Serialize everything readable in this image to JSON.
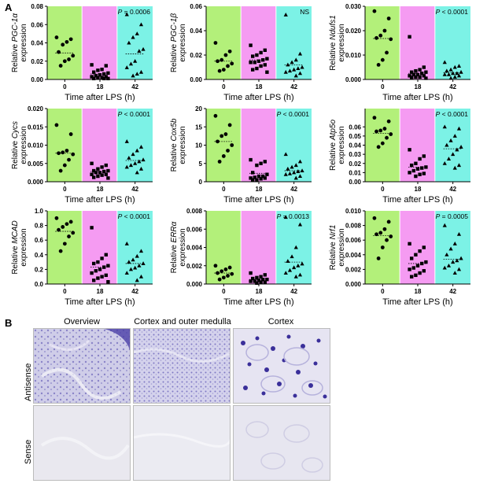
{
  "panel_a_label": "A",
  "panel_b_label": "B",
  "xlabel": "Time after LPS (h)",
  "categories": [
    "0",
    "18",
    "42"
  ],
  "group_colors": [
    "#b3f07a",
    "#f59bf2",
    "#7cf2e6"
  ],
  "chart_data": [
    {
      "type": "scatter",
      "gene": "PGC-1α",
      "ylabel_prefix": "Relative",
      "ylabel_suffix": "expression",
      "ylim": [
        0,
        0.08
      ],
      "yticks": [
        "0.00",
        "0.02",
        "0.04",
        "0.06",
        "0.08"
      ],
      "pvalue": "P = 0.0006",
      "categories": [
        "0",
        "18",
        "42"
      ],
      "groups": [
        {
          "marker": "circle",
          "mean": 0.029,
          "values": [
            0.046,
            0.044,
            0.041,
            0.038,
            0.03,
            0.026,
            0.022,
            0.02,
            0.015
          ]
        },
        {
          "marker": "square",
          "mean": 0.006,
          "values": [
            0.016,
            0.015,
            0.011,
            0.01,
            0.008,
            0.007,
            0.006,
            0.005,
            0.004,
            0.003,
            0.003,
            0.002,
            0.002,
            0.001,
            0.001,
            0.001
          ]
        },
        {
          "marker": "triangle",
          "mean": 0.028,
          "values": [
            0.071,
            0.06,
            0.05,
            0.046,
            0.04,
            0.033,
            0.031,
            0.02,
            0.017,
            0.013,
            0.008,
            0.006,
            0.004
          ]
        }
      ]
    },
    {
      "type": "scatter",
      "gene": "PGC-1β",
      "ylabel_prefix": "Relative",
      "ylabel_suffix": "expression",
      "ylim": [
        0,
        0.06
      ],
      "yticks": [
        "0.00",
        "0.02",
        "0.04",
        "0.06"
      ],
      "pvalue": "NS",
      "categories": [
        "0",
        "18",
        "42"
      ],
      "groups": [
        {
          "marker": "circle",
          "mean": 0.015,
          "values": [
            0.03,
            0.023,
            0.02,
            0.016,
            0.015,
            0.013,
            0.011,
            0.008,
            0.007
          ]
        },
        {
          "marker": "square",
          "mean": 0.016,
          "values": [
            0.028,
            0.024,
            0.022,
            0.02,
            0.019,
            0.017,
            0.016,
            0.015,
            0.014,
            0.014,
            0.012,
            0.011,
            0.009,
            0.008,
            0.006
          ]
        },
        {
          "marker": "triangle",
          "mean": 0.012,
          "values": [
            0.053,
            0.021,
            0.016,
            0.014,
            0.012,
            0.01,
            0.009,
            0.008,
            0.007,
            0.006,
            0.005,
            0.003
          ]
        }
      ]
    },
    {
      "type": "scatter",
      "gene": "Ndufs1",
      "ylabel_prefix": "Relative",
      "ylabel_suffix": "expression",
      "ylim": [
        0,
        0.03
      ],
      "yticks": [
        "0.000",
        "0.010",
        "0.020",
        "0.030"
      ],
      "pvalue": "P < 0.0001",
      "categories": [
        "0",
        "18",
        "42"
      ],
      "groups": [
        {
          "marker": "circle",
          "mean": 0.0168,
          "values": [
            0.028,
            0.025,
            0.02,
            0.018,
            0.017,
            0.0165,
            0.011,
            0.008,
            0.006
          ]
        },
        {
          "marker": "square",
          "mean": 0.0025,
          "values": [
            0.0175,
            0.005,
            0.004,
            0.0035,
            0.003,
            0.003,
            0.0025,
            0.002,
            0.002,
            0.0015,
            0.0015,
            0.001,
            0.001,
            0.0008,
            0.0005
          ]
        },
        {
          "marker": "triangle",
          "mean": 0.0028,
          "values": [
            0.007,
            0.0055,
            0.005,
            0.004,
            0.0035,
            0.003,
            0.0025,
            0.0025,
            0.002,
            0.002,
            0.0015,
            0.001,
            0.0005
          ]
        }
      ]
    },
    {
      "type": "scatter",
      "gene": "Cycs",
      "ylabel_prefix": "Relative",
      "ylabel_suffix": "expression",
      "ylim": [
        0,
        0.02
      ],
      "yticks": [
        "0.000",
        "0.005",
        "0.010",
        "0.015",
        "0.020"
      ],
      "pvalue": "P < 0.0001",
      "categories": [
        "0",
        "18",
        "42"
      ],
      "groups": [
        {
          "marker": "circle",
          "mean": 0.0078,
          "values": [
            0.0155,
            0.013,
            0.0085,
            0.008,
            0.0078,
            0.0075,
            0.006,
            0.0045,
            0.003
          ]
        },
        {
          "marker": "square",
          "mean": 0.0028,
          "values": [
            0.005,
            0.0045,
            0.004,
            0.0035,
            0.003,
            0.003,
            0.0028,
            0.0025,
            0.0025,
            0.002,
            0.002,
            0.0018,
            0.0015,
            0.0012,
            0.001
          ]
        },
        {
          "marker": "triangle",
          "mean": 0.0058,
          "values": [
            0.011,
            0.0095,
            0.0085,
            0.0075,
            0.0065,
            0.006,
            0.0055,
            0.005,
            0.0045,
            0.004,
            0.0035,
            0.0025
          ]
        }
      ]
    },
    {
      "type": "scatter",
      "gene": "Cox5b",
      "ylabel_prefix": "Relative",
      "ylabel_suffix": "expression",
      "ylim": [
        0,
        20
      ],
      "yticks": [
        "0",
        "5",
        "10",
        "15",
        "20"
      ],
      "pvalue": "P < 0.0001",
      "categories": [
        "0",
        "18",
        "42"
      ],
      "groups": [
        {
          "marker": "circle",
          "mean": 11,
          "values": [
            18,
            15.5,
            13,
            12.5,
            11,
            10,
            8.5,
            7,
            5.5
          ]
        },
        {
          "marker": "square",
          "mean": 2.3,
          "values": [
            6,
            5.5,
            5,
            4.5,
            2.5,
            2,
            1.5,
            1.5,
            1.2,
            1,
            1,
            0.8,
            0.5,
            0.5
          ]
        },
        {
          "marker": "triangle",
          "mean": 3,
          "values": [
            7.5,
            5.5,
            4.5,
            4,
            3.5,
            3,
            2.8,
            2.5,
            2.2,
            2,
            1.5,
            1
          ]
        }
      ]
    },
    {
      "type": "scatter",
      "gene": "Atp5o",
      "ylabel_prefix": "Relative",
      "ylabel_suffix": "expression",
      "ylim": [
        0,
        0.08
      ],
      "yticks": [
        "0.00",
        "0.01",
        "0.02",
        "0.03",
        "0.04",
        "0.05",
        "0.06"
      ],
      "yticks_top": 0.06,
      "pvalue": "P < 0.0001",
      "categories": [
        "0",
        "18",
        "42"
      ],
      "groups": [
        {
          "marker": "circle",
          "mean": 0.053,
          "values": [
            0.07,
            0.066,
            0.058,
            0.056,
            0.055,
            0.052,
            0.048,
            0.042,
            0.038
          ]
        },
        {
          "marker": "square",
          "mean": 0.016,
          "values": [
            0.035,
            0.028,
            0.025,
            0.02,
            0.018,
            0.016,
            0.015,
            0.014,
            0.012,
            0.01,
            0.009,
            0.008,
            0.006
          ]
        },
        {
          "marker": "triangle",
          "mean": 0.036,
          "values": [
            0.06,
            0.058,
            0.05,
            0.045,
            0.04,
            0.038,
            0.035,
            0.03,
            0.025,
            0.02,
            0.018,
            0.015
          ]
        }
      ]
    },
    {
      "type": "scatter",
      "gene": "MCAD",
      "ylabel_prefix": "Relative",
      "ylabel_suffix": "expression",
      "ylim": [
        0,
        1.0
      ],
      "yticks": [
        "0.0",
        "0.2",
        "0.4",
        "0.6",
        "0.8",
        "1.0"
      ],
      "pvalue": "P < 0.0001",
      "categories": [
        "0",
        "18",
        "42"
      ],
      "groups": [
        {
          "marker": "circle",
          "mean": 0.72,
          "values": [
            0.9,
            0.85,
            0.82,
            0.78,
            0.74,
            0.7,
            0.65,
            0.55,
            0.45
          ]
        },
        {
          "marker": "square",
          "mean": 0.23,
          "values": [
            0.77,
            0.4,
            0.35,
            0.3,
            0.28,
            0.25,
            0.23,
            0.2,
            0.18,
            0.15,
            0.12,
            0.1,
            0.08,
            0.05,
            0.03
          ]
        },
        {
          "marker": "triangle",
          "mean": 0.28,
          "values": [
            0.55,
            0.45,
            0.38,
            0.33,
            0.3,
            0.28,
            0.25,
            0.22,
            0.2,
            0.15,
            0.1,
            0.05
          ]
        }
      ]
    },
    {
      "type": "scatter",
      "gene": "ERRα",
      "ylabel_prefix": "Relative",
      "ylabel_suffix": "expression",
      "ylim": [
        0,
        0.008
      ],
      "yticks": [
        "0.000",
        "0.002",
        "0.004",
        "0.006",
        "0.008"
      ],
      "pvalue": "P = 0.0013",
      "categories": [
        "0",
        "18",
        "42"
      ],
      "groups": [
        {
          "marker": "circle",
          "mean": 0.0012,
          "values": [
            0.002,
            0.0018,
            0.0016,
            0.0014,
            0.0012,
            0.0011,
            0.0009,
            0.0007,
            0.0005
          ]
        },
        {
          "marker": "square",
          "mean": 0.0005,
          "values": [
            0.0012,
            0.001,
            0.0008,
            0.0007,
            0.0006,
            0.0005,
            0.0005,
            0.0004,
            0.0003,
            0.0003,
            0.0002,
            0.0002,
            0.0001
          ]
        },
        {
          "marker": "triangle",
          "mean": 0.0024,
          "values": [
            0.0073,
            0.0065,
            0.004,
            0.003,
            0.0025,
            0.0022,
            0.002,
            0.0018,
            0.0015,
            0.0012,
            0.001,
            0.0008
          ]
        }
      ]
    },
    {
      "type": "scatter",
      "gene": "Nrf1",
      "ylabel_prefix": "Relative",
      "ylabel_suffix": "expression",
      "ylim": [
        0,
        0.01
      ],
      "yticks": [
        "0.000",
        "0.002",
        "0.004",
        "0.006",
        "0.008",
        "0.010"
      ],
      "pvalue": "P = 0.0005",
      "categories": [
        "0",
        "18",
        "42"
      ],
      "groups": [
        {
          "marker": "circle",
          "mean": 0.0066,
          "values": [
            0.009,
            0.0085,
            0.0075,
            0.007,
            0.0068,
            0.0065,
            0.006,
            0.005,
            0.0035
          ]
        },
        {
          "marker": "square",
          "mean": 0.0028,
          "values": [
            0.0055,
            0.005,
            0.0045,
            0.004,
            0.0035,
            0.003,
            0.0028,
            0.0025,
            0.0022,
            0.002,
            0.0018,
            0.0015,
            0.0012,
            0.001
          ]
        },
        {
          "marker": "triangle",
          "mean": 0.0034,
          "values": [
            0.008,
            0.0068,
            0.0055,
            0.0048,
            0.004,
            0.0035,
            0.0032,
            0.003,
            0.0025,
            0.0022,
            0.002,
            0.0015
          ]
        }
      ]
    }
  ],
  "micrographs": {
    "columns": [
      "Overview",
      "Cortex and outer medulla",
      "Cortex"
    ],
    "rows": [
      "Antisense",
      "Sense"
    ]
  }
}
